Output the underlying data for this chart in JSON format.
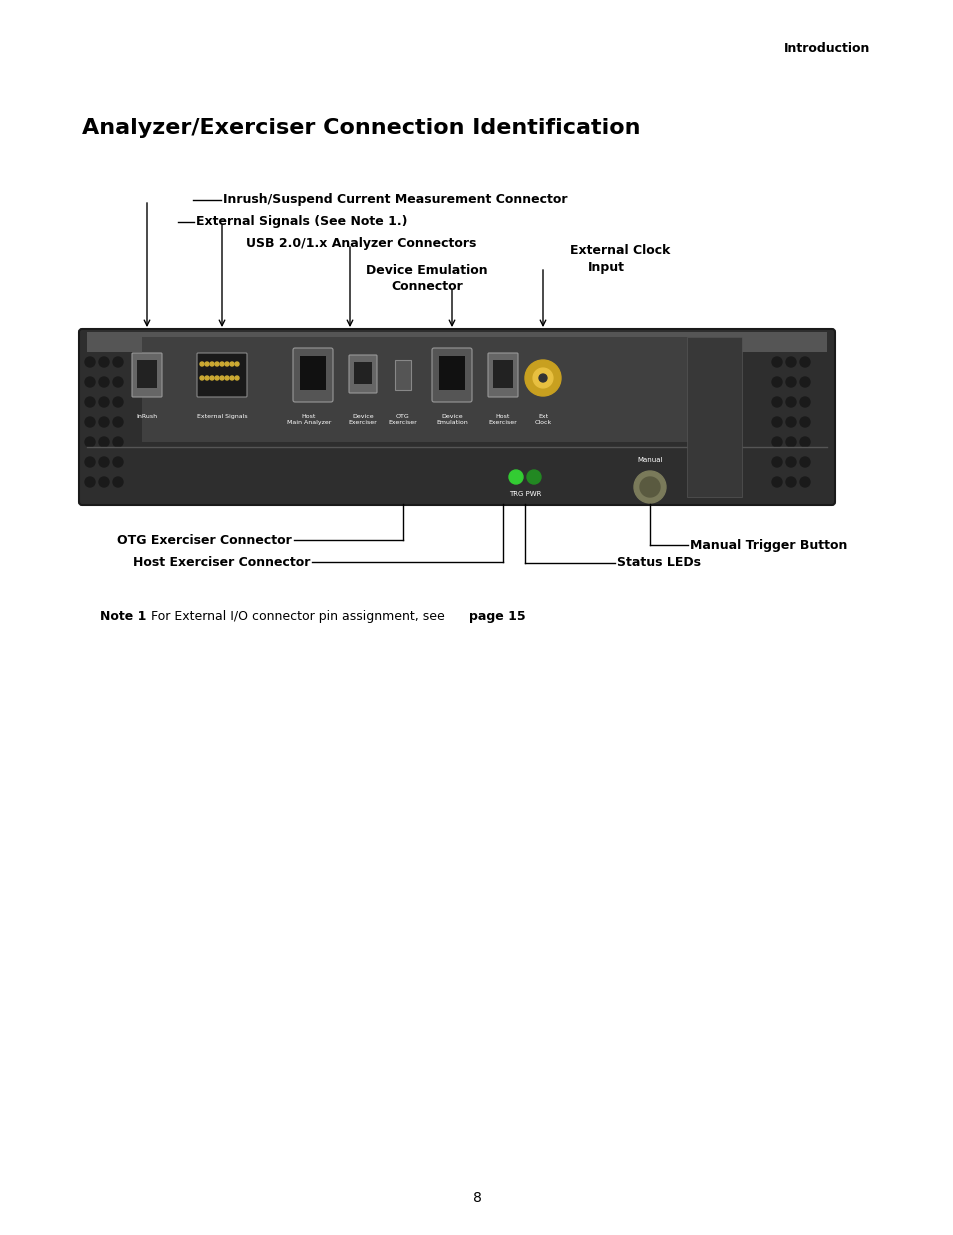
{
  "page_width": 9.54,
  "page_height": 12.35,
  "dpi": 100,
  "background_color": "#ffffff",
  "header_text": "Introduction",
  "title": "Analyzer/Exerciser Connection Identification",
  "footer_text": "8",
  "device_color": "#3a3a3a",
  "device_top_color": "#4a4a4a",
  "note_bold1": "Note 1",
  "note_normal": " For External I/O connector pin assignment, see ",
  "note_bold2": "page 15",
  "note_period": "."
}
